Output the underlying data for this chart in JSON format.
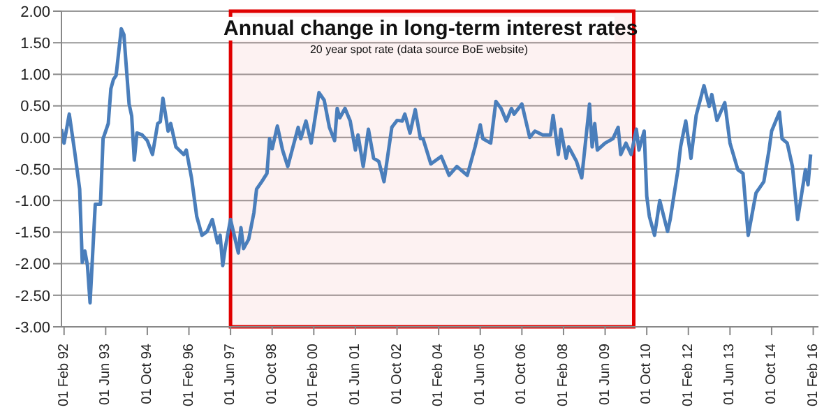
{
  "chart_data": {
    "type": "line",
    "title": "Annual change in long-term interest rates",
    "subtitle": "20 year spot rate (data source BoE website)",
    "x": [
      "1992-01",
      "1992-02",
      "1992-04",
      "1992-06",
      "1992-08",
      "1992-09",
      "1992-10",
      "1992-11",
      "1992-12",
      "1993-02",
      "1993-04",
      "1993-05",
      "1993-07",
      "1993-08",
      "1993-09",
      "1993-10",
      "1993-12",
      "1994-01",
      "1994-03",
      "1994-04",
      "1994-05",
      "1994-06",
      "1994-08",
      "1994-10",
      "1994-12",
      "1995-02",
      "1995-03",
      "1995-04",
      "1995-06",
      "1995-07",
      "1995-09",
      "1995-12",
      "1996-01",
      "1996-03",
      "1996-05",
      "1996-07",
      "1996-09",
      "1996-11",
      "1997-01",
      "1997-02",
      "1997-03",
      "1997-04",
      "1997-06",
      "1997-09",
      "1997-10",
      "1997-11",
      "1998-01",
      "1998-03",
      "1998-04",
      "1998-06",
      "1998-08",
      "1998-09",
      "1998-10",
      "1998-12",
      "1999-02",
      "1999-04",
      "1999-08",
      "1999-09",
      "1999-11",
      "2000-01",
      "2000-04",
      "2000-06",
      "2000-08",
      "2000-10",
      "2000-11",
      "2000-12",
      "2001-02",
      "2001-04",
      "2001-06",
      "2001-07",
      "2001-09",
      "2001-11",
      "2002-01",
      "2002-03",
      "2002-05",
      "2002-08",
      "2002-10",
      "2002-12",
      "2003-01",
      "2003-03",
      "2003-05",
      "2003-07",
      "2003-08",
      "2003-11",
      "2004-03",
      "2004-06",
      "2004-09",
      "2005-01",
      "2005-04",
      "2005-06",
      "2005-07",
      "2005-10",
      "2005-12",
      "2006-02",
      "2006-04",
      "2006-06",
      "2006-07",
      "2006-10",
      "2007-01",
      "2007-03",
      "2007-06",
      "2007-09",
      "2007-10",
      "2007-12",
      "2008-01",
      "2008-03",
      "2008-04",
      "2008-07",
      "2008-09",
      "2008-12",
      "2009-01",
      "2009-02",
      "2009-03",
      "2009-06",
      "2009-09",
      "2009-11",
      "2009-12",
      "2010-02",
      "2010-04",
      "2010-06",
      "2010-07",
      "2010-09",
      "2010-10",
      "2010-11",
      "2011-01",
      "2011-03",
      "2011-06",
      "2011-07",
      "2011-10",
      "2011-11",
      "2012-01",
      "2012-03",
      "2012-05",
      "2012-08",
      "2012-10",
      "2012-11",
      "2013-01",
      "2013-04",
      "2013-06",
      "2013-09",
      "2013-11",
      "2014-01",
      "2014-03",
      "2014-04",
      "2014-07",
      "2014-09",
      "2014-10",
      "2015-01",
      "2015-02",
      "2015-04",
      "2015-06",
      "2015-08",
      "2015-11",
      "2015-12",
      "2016-01"
    ],
    "series": [
      {
        "color": "#4a7ebb",
        "values": [
          0.13,
          -0.09,
          0.37,
          -0.2,
          -0.82,
          -1.98,
          -1.8,
          -2.03,
          -2.62,
          -1.06,
          -1.06,
          -0.02,
          0.22,
          0.77,
          0.92,
          0.98,
          1.72,
          1.63,
          0.53,
          0.34,
          -0.36,
          0.07,
          0.04,
          -0.05,
          -0.27,
          0.22,
          0.25,
          0.62,
          0.1,
          0.22,
          -0.15,
          -0.27,
          -0.2,
          -0.64,
          -1.25,
          -1.55,
          -1.49,
          -1.3,
          -1.67,
          -1.55,
          -2.03,
          -1.74,
          -1.3,
          -1.83,
          -1.43,
          -1.76,
          -1.61,
          -1.19,
          -0.82,
          -0.7,
          -0.57,
          -0.02,
          -0.18,
          0.18,
          -0.2,
          -0.46,
          0.16,
          -0.02,
          0.26,
          -0.09,
          0.71,
          0.59,
          0.16,
          -0.05,
          0.46,
          0.31,
          0.46,
          0.26,
          -0.2,
          0.04,
          -0.46,
          0.13,
          -0.33,
          -0.38,
          -0.7,
          0.16,
          0.27,
          0.26,
          0.37,
          0.07,
          0.44,
          -0.02,
          -0.02,
          -0.42,
          -0.3,
          -0.6,
          -0.46,
          -0.6,
          -0.15,
          0.2,
          -0.02,
          -0.09,
          0.57,
          0.46,
          0.26,
          0.46,
          0.37,
          0.53,
          0.0,
          0.1,
          0.04,
          0.04,
          0.35,
          -0.27,
          0.13,
          -0.33,
          -0.15,
          -0.38,
          -0.64,
          0.53,
          -0.15,
          0.22,
          -0.2,
          -0.09,
          -0.02,
          0.16,
          -0.27,
          -0.09,
          -0.27,
          0.13,
          -0.2,
          0.1,
          -0.93,
          -1.25,
          -1.55,
          -1.0,
          -1.49,
          -1.3,
          -0.51,
          -0.15,
          0.26,
          -0.33,
          0.35,
          0.82,
          0.49,
          0.68,
          0.27,
          0.55,
          -0.09,
          -0.51,
          -0.57,
          -1.55,
          -1.1,
          -0.88,
          -0.7,
          -0.2,
          0.1,
          0.4,
          -0.02,
          -0.09,
          -0.46,
          -1.3,
          -0.51,
          -0.75,
          -0.27
        ]
      }
    ],
    "xlim": [
      "1992-01",
      "2016-04"
    ],
    "xticks": [
      {
        "value": "1992-02",
        "label": "01 Feb 92"
      },
      {
        "value": "1993-06",
        "label": "01 Jun 93"
      },
      {
        "value": "1994-10",
        "label": "01 Oct 94"
      },
      {
        "value": "1996-02",
        "label": "01 Feb 96"
      },
      {
        "value": "1997-06",
        "label": "01 Jun 97"
      },
      {
        "value": "1998-10",
        "label": "01 Oct 98"
      },
      {
        "value": "2000-02",
        "label": "01 Feb 00"
      },
      {
        "value": "2001-06",
        "label": "01 Jun 01"
      },
      {
        "value": "2002-10",
        "label": "01 Oct 02"
      },
      {
        "value": "2004-02",
        "label": "01 Feb 04"
      },
      {
        "value": "2005-06",
        "label": "01 Jun 05"
      },
      {
        "value": "2006-10",
        "label": "01 Oct 06"
      },
      {
        "value": "2008-02",
        "label": "01 Feb 08"
      },
      {
        "value": "2009-06",
        "label": "01 Jun 09"
      },
      {
        "value": "2010-10",
        "label": "01 Oct 10"
      },
      {
        "value": "2012-02",
        "label": "01 Feb 12"
      },
      {
        "value": "2013-06",
        "label": "01 Jun 13"
      },
      {
        "value": "2014-10",
        "label": "01 Oct 14"
      },
      {
        "value": "2016-02",
        "label": "01 Feb 16"
      }
    ],
    "ylim": [
      -3,
      2
    ],
    "yticks": [
      {
        "value": 2,
        "label": "2.00"
      },
      {
        "value": 1.5,
        "label": "1.50"
      },
      {
        "value": 1,
        "label": "1.00"
      },
      {
        "value": 0.5,
        "label": "0.50"
      },
      {
        "value": 0,
        "label": "0.00"
      },
      {
        "value": -0.5,
        "label": "-0.50"
      },
      {
        "value": -1,
        "label": "-1.00"
      },
      {
        "value": -1.5,
        "label": "-1.50"
      },
      {
        "value": -2,
        "label": "-2.00"
      },
      {
        "value": -2.5,
        "label": "-2.50"
      },
      {
        "value": -3,
        "label": "-3.00"
      }
    ],
    "grid": "y",
    "bands": [
      {
        "axis": "x",
        "from": "1997-06",
        "to": "2010-05",
        "color": "#e00000"
      }
    ]
  }
}
